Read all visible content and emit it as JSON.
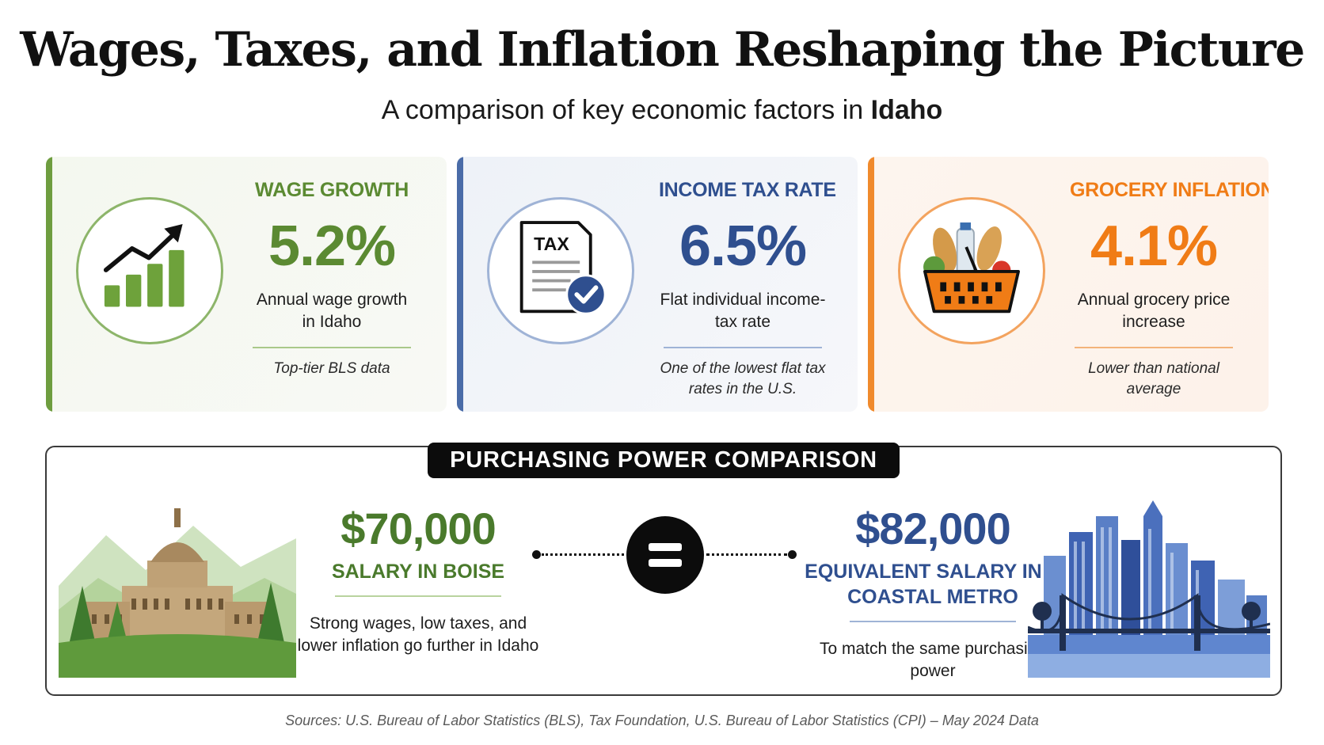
{
  "header": {
    "title": "Wages, Taxes, and Inflation Reshaping the Picture",
    "subtitle_prefix": "A comparison of key economic factors in",
    "subtitle_place": "Idaho"
  },
  "cards": [
    {
      "heading": "WAGE GROWTH",
      "value": "5.2%",
      "description": "Annual wage growth in Idaho",
      "note": "Top-tier BLS data",
      "icon": "growth-chart-icon",
      "accent": "#5b8a32"
    },
    {
      "heading": "INCOME TAX RATE",
      "value": "6.5%",
      "description": "Flat individual income-tax rate",
      "note": "One of the lowest flat tax rates in the U.S.",
      "icon": "tax-document-icon",
      "icon_text": "TAX",
      "accent": "#2f4f8f"
    },
    {
      "heading": "GROCERY INFLATION",
      "value": "4.1%",
      "description": "Annual grocery price increase",
      "note": "Lower than national average",
      "icon": "grocery-basket-icon",
      "accent": "#f07c16"
    }
  ],
  "comparison": {
    "label": "PURCHASING POWER COMPARISON",
    "left": {
      "amount": "$70,000",
      "label": "SALARY IN BOISE",
      "description": "Strong wages, low taxes, and lower inflation go further in Idaho",
      "illustration": "idaho-capitol-illustration",
      "accent": "#4a7a2c"
    },
    "right": {
      "amount": "$82,000",
      "label": "EQUIVALENT SALARY IN A COASTAL METRO",
      "description": "To match the same purchasing power",
      "illustration": "coastal-city-skyline-illustration",
      "accent": "#2f4f8f"
    },
    "equals_icon": "equals-icon"
  },
  "footer": {
    "sources": "Sources: U.S. Bureau of Labor Statistics (BLS), Tax Foundation, U.S. Bureau of Labor Statistics (CPI) – May 2024 Data"
  }
}
